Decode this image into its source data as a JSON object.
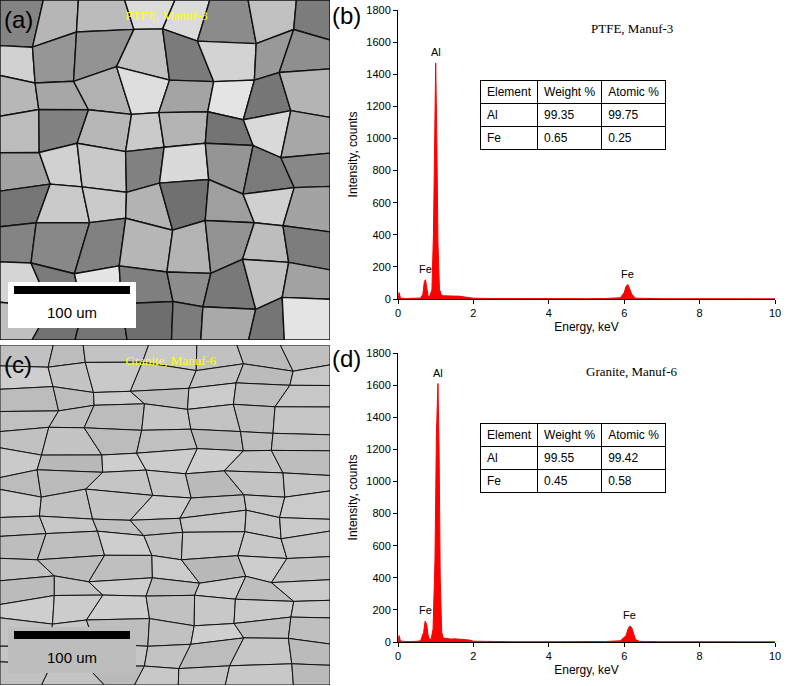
{
  "images": [
    {
      "panel": "(a)",
      "caption": "PTFE, Manuf-3",
      "scale_bar": "100 um"
    },
    {
      "panel": "(c)",
      "caption": "Granite, Manuf-6",
      "scale_bar": "100 um"
    }
  ],
  "chart_data": [
    {
      "type": "area",
      "panel": "(b)",
      "title": "PTFE, Manuf-3",
      "xlabel": "Energy, keV",
      "ylabel": "Intensity, counts",
      "color": "#ff0000",
      "grid": false,
      "x": [
        0,
        0.03,
        0.06,
        0.1,
        0.2,
        0.3,
        0.4,
        0.5,
        0.6,
        0.66,
        0.7,
        0.73,
        0.76,
        0.8,
        0.85,
        0.9,
        0.94,
        0.97,
        1.0,
        1.03,
        1.06,
        1.1,
        1.15,
        1.2,
        1.3,
        1.4,
        1.5,
        1.6,
        1.7,
        1.8,
        1.9,
        2.0,
        2.5,
        3,
        4,
        5,
        5.5,
        5.9,
        6.0,
        6.05,
        6.1,
        6.15,
        6.2,
        6.3,
        6.5,
        7,
        8,
        9,
        10
      ],
      "values": [
        0,
        40,
        10,
        5,
        3,
        3,
        3,
        4,
        6,
        30,
        110,
        120,
        60,
        15,
        20,
        60,
        400,
        1100,
        1470,
        1000,
        350,
        60,
        25,
        20,
        18,
        20,
        18,
        18,
        15,
        12,
        8,
        5,
        3,
        2,
        2,
        2,
        3,
        8,
        40,
        80,
        90,
        60,
        30,
        5,
        3,
        2,
        2,
        1,
        1
      ],
      "xlim": [
        0,
        10
      ],
      "xticks": [
        0,
        2,
        4,
        6,
        8,
        10
      ],
      "ylim": [
        0,
        1800
      ],
      "yticks": [
        0,
        200,
        400,
        600,
        800,
        1000,
        1200,
        1400,
        1600,
        1800
      ],
      "peak_labels": [
        {
          "text": "Fe",
          "x": 0.73,
          "y": 120
        },
        {
          "text": "Al",
          "x": 1.0,
          "y": 1470
        },
        {
          "text": "Fe",
          "x": 6.1,
          "y": 90
        }
      ],
      "table": {
        "header": [
          "Element",
          "Weight %",
          "Atomic %"
        ],
        "rows": [
          [
            "Al",
            99.35,
            99.75
          ],
          [
            "Fe",
            0.65,
            0.25
          ]
        ]
      }
    },
    {
      "type": "area",
      "panel": "(d)",
      "title": "Granite, Manuf-6",
      "xlabel": "Energy, keV",
      "ylabel": "Intensity, counts",
      "color": "#ff0000",
      "grid": false,
      "x": [
        0,
        0.03,
        0.06,
        0.1,
        0.2,
        0.3,
        0.4,
        0.5,
        0.6,
        0.68,
        0.72,
        0.76,
        0.8,
        0.84,
        0.88,
        0.93,
        0.98,
        1.02,
        1.06,
        1.09,
        1.12,
        1.16,
        1.2,
        1.3,
        1.4,
        1.5,
        1.6,
        1.7,
        1.8,
        1.9,
        2.0,
        2.5,
        3,
        4,
        5,
        5.5,
        5.9,
        6.05,
        6.1,
        6.15,
        6.2,
        6.25,
        6.3,
        6.4,
        6.6,
        7,
        8,
        9,
        10
      ],
      "values": [
        0,
        40,
        10,
        5,
        3,
        3,
        3,
        4,
        8,
        60,
        130,
        110,
        40,
        15,
        20,
        80,
        500,
        1300,
        1610,
        1200,
        400,
        60,
        25,
        20,
        18,
        20,
        18,
        18,
        15,
        12,
        5,
        3,
        2,
        2,
        2,
        3,
        8,
        40,
        80,
        100,
        90,
        50,
        15,
        4,
        3,
        2,
        2,
        1,
        1
      ],
      "xlim": [
        0,
        10
      ],
      "xticks": [
        0,
        2,
        4,
        6,
        8,
        10
      ],
      "ylim": [
        0,
        1800
      ],
      "yticks": [
        0,
        200,
        400,
        600,
        800,
        1000,
        1200,
        1400,
        1600,
        1800
      ],
      "peak_labels": [
        {
          "text": "Fe",
          "x": 0.72,
          "y": 130
        },
        {
          "text": "Al",
          "x": 1.06,
          "y": 1610
        },
        {
          "text": "Fe",
          "x": 6.15,
          "y": 100
        }
      ],
      "table": {
        "header": [
          "Element",
          "Weight %",
          "Atomic %"
        ],
        "rows": [
          [
            "Al",
            99.55,
            99.42
          ],
          [
            "Fe",
            0.45,
            0.58
          ]
        ]
      }
    }
  ]
}
